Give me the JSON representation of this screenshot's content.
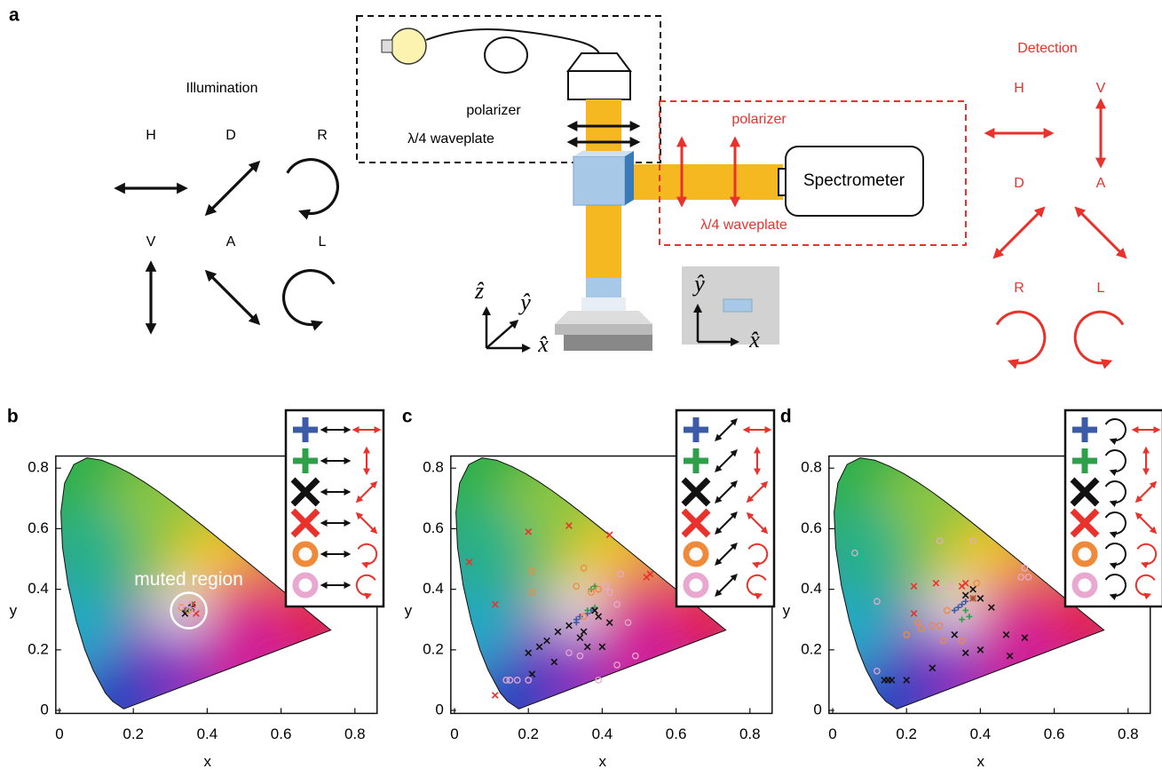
{
  "panel_a": {
    "label": "a",
    "illumination": {
      "title": "Illumination",
      "states": [
        "H",
        "D",
        "R",
        "V",
        "A",
        "L"
      ]
    },
    "setup": {
      "polarizer": "polarizer",
      "waveplate": "λ/4 waveplate",
      "spectrometer": "Spectrometer",
      "detection_polarizer": "polarizer",
      "detection_waveplate": "λ/4 waveplate",
      "axes": [
        "ẑ",
        "ŷ",
        "x̂"
      ],
      "sample_axes": [
        "ŷ",
        "x̂"
      ]
    },
    "detection": {
      "title": "Detection",
      "states": [
        "H",
        "V",
        "D",
        "A",
        "R",
        "L"
      ]
    }
  },
  "chart_data": [
    {
      "type": "scatter",
      "label": "b",
      "xlabel": "x",
      "ylabel": "y",
      "annotation": "muted region",
      "xlim": [
        -0.01,
        0.86
      ],
      "ylim": [
        -0.01,
        0.84
      ],
      "xticks": [
        0,
        0.2,
        0.4,
        0.6,
        0.8
      ],
      "yticks": [
        0,
        0.2,
        0.4,
        0.6,
        0.8
      ],
      "series": [
        {
          "color": "#3b5ba9",
          "marker": "plus",
          "x": [
            0.34,
            0.35
          ],
          "values": [
            0.33,
            0.34
          ]
        },
        {
          "color": "#2fa04a",
          "marker": "plus",
          "x": [
            0.35,
            0.36
          ],
          "values": [
            0.33,
            0.35
          ]
        },
        {
          "color": "#111111",
          "marker": "cross",
          "x": [
            0.34,
            0.36
          ],
          "values": [
            0.32,
            0.34
          ]
        },
        {
          "color": "#e8322b",
          "marker": "cross",
          "x": [
            0.36,
            0.37
          ],
          "values": [
            0.35,
            0.32
          ]
        },
        {
          "color": "#ef8a3a",
          "marker": "circle",
          "x": [
            0.33,
            0.35
          ],
          "values": [
            0.34,
            0.33
          ]
        },
        {
          "color": "#e8a8d0",
          "marker": "circle",
          "x": [
            0.33,
            0.35,
            0.36
          ],
          "values": [
            0.35,
            0.35,
            0.33
          ]
        }
      ]
    },
    {
      "type": "scatter",
      "label": "c",
      "xlabel": "x",
      "ylabel": "y",
      "xlim": [
        -0.01,
        0.86
      ],
      "ylim": [
        -0.01,
        0.84
      ],
      "xticks": [
        0,
        0.2,
        0.4,
        0.6,
        0.8
      ],
      "yticks": [
        0,
        0.2,
        0.4,
        0.6,
        0.8
      ],
      "series": [
        {
          "color": "#3b5ba9",
          "marker": "plus",
          "x": [
            0.33,
            0.33,
            0.36,
            0.37,
            0.34
          ],
          "values": [
            0.29,
            0.3,
            0.32,
            0.33,
            0.31
          ]
        },
        {
          "color": "#2fa04a",
          "marker": "plus",
          "x": [
            0.36,
            0.38,
            0.37,
            0.38
          ],
          "values": [
            0.33,
            0.34,
            0.4,
            0.41
          ]
        },
        {
          "color": "#111111",
          "marker": "cross",
          "x": [
            0.2,
            0.23,
            0.25,
            0.28,
            0.31,
            0.34,
            0.36,
            0.4,
            0.39,
            0.38,
            0.35,
            0.21,
            0.27,
            0.42
          ],
          "values": [
            0.19,
            0.21,
            0.23,
            0.26,
            0.28,
            0.24,
            0.21,
            0.21,
            0.31,
            0.33,
            0.26,
            0.12,
            0.16,
            0.29
          ]
        },
        {
          "color": "#e8322b",
          "marker": "cross",
          "x": [
            0.04,
            0.11,
            0.2,
            0.31,
            0.42,
            0.53,
            0.52,
            0.11
          ],
          "values": [
            0.49,
            0.35,
            0.59,
            0.61,
            0.58,
            0.45,
            0.44,
            0.05
          ]
        },
        {
          "color": "#ef8a3a",
          "marker": "circle",
          "x": [
            0.21,
            0.21,
            0.33,
            0.37,
            0.39,
            0.35,
            0.35
          ],
          "values": [
            0.39,
            0.46,
            0.41,
            0.39,
            0.4,
            0.31,
            0.47
          ]
        },
        {
          "color": "#e8a8d0",
          "marker": "circle",
          "x": [
            0.14,
            0.15,
            0.17,
            0.2,
            0.31,
            0.34,
            0.39,
            0.44,
            0.49,
            0.47,
            0.44,
            0.42,
            0.41,
            0.45
          ],
          "values": [
            0.1,
            0.1,
            0.1,
            0.1,
            0.19,
            0.18,
            0.1,
            0.15,
            0.18,
            0.29,
            0.35,
            0.39,
            0.41,
            0.45
          ]
        }
      ]
    },
    {
      "type": "scatter",
      "label": "d",
      "xlabel": "x",
      "ylabel": "y",
      "xlim": [
        -0.01,
        0.86
      ],
      "ylim": [
        -0.01,
        0.84
      ],
      "xticks": [
        0,
        0.2,
        0.4,
        0.6,
        0.8
      ],
      "yticks": [
        0,
        0.2,
        0.4,
        0.6,
        0.8
      ],
      "series": [
        {
          "color": "#3b5ba9",
          "marker": "plus",
          "x": [
            0.33,
            0.34,
            0.35,
            0.36
          ],
          "values": [
            0.33,
            0.34,
            0.35,
            0.36
          ]
        },
        {
          "color": "#2fa04a",
          "marker": "plus",
          "x": [
            0.36,
            0.37,
            0.38,
            0.35
          ],
          "values": [
            0.33,
            0.31,
            0.37,
            0.3
          ]
        },
        {
          "color": "#111111",
          "marker": "cross",
          "x": [
            0.14,
            0.15,
            0.16,
            0.2,
            0.27,
            0.33,
            0.36,
            0.38,
            0.4,
            0.43,
            0.47,
            0.48,
            0.52,
            0.36,
            0.4
          ],
          "values": [
            0.1,
            0.1,
            0.1,
            0.1,
            0.14,
            0.25,
            0.38,
            0.4,
            0.37,
            0.34,
            0.25,
            0.18,
            0.24,
            0.19,
            0.2
          ]
        },
        {
          "color": "#e8322b",
          "marker": "cross",
          "x": [
            0.22,
            0.22,
            0.28,
            0.35,
            0.36,
            0.38
          ],
          "values": [
            0.41,
            0.32,
            0.42,
            0.41,
            0.42,
            0.37
          ]
        },
        {
          "color": "#ef8a3a",
          "marker": "circle",
          "x": [
            0.2,
            0.23,
            0.24,
            0.27,
            0.29,
            0.31,
            0.35,
            0.39,
            0.3
          ],
          "values": [
            0.25,
            0.29,
            0.27,
            0.28,
            0.28,
            0.33,
            0.23,
            0.42,
            0.23
          ]
        },
        {
          "color": "#e8a8d0",
          "marker": "circle",
          "x": [
            0.06,
            0.12,
            0.12,
            0.29,
            0.38,
            0.52,
            0.51,
            0.53,
            0.29,
            0.32
          ],
          "values": [
            0.52,
            0.36,
            0.13,
            0.56,
            0.56,
            0.47,
            0.44,
            0.44,
            0.4,
            0.41
          ]
        }
      ]
    }
  ]
}
